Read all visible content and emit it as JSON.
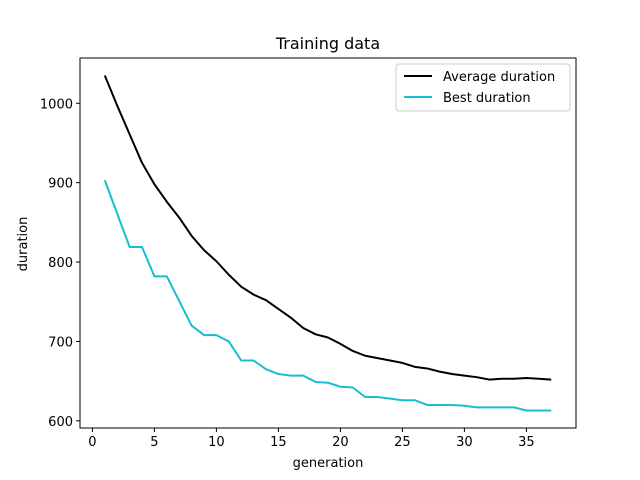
{
  "chart_data": {
    "type": "line",
    "title": "Training data",
    "xlabel": "generation",
    "ylabel": "duration",
    "xlim": [
      -1,
      39
    ],
    "ylim": [
      591,
      1057
    ],
    "xticks": [
      0,
      5,
      10,
      15,
      20,
      25,
      30,
      35
    ],
    "yticks": [
      600,
      700,
      800,
      900,
      1000
    ],
    "grid": false,
    "legend_position": "top-right",
    "x": [
      1,
      2,
      3,
      4,
      5,
      6,
      7,
      8,
      9,
      10,
      11,
      12,
      13,
      14,
      15,
      16,
      17,
      18,
      19,
      20,
      21,
      22,
      23,
      24,
      25,
      26,
      27,
      28,
      29,
      30,
      31,
      32,
      33,
      34,
      35,
      36,
      37
    ],
    "series": [
      {
        "name": "Average duration",
        "color": "#000000",
        "values": [
          1035,
          997,
          961,
          925,
          898,
          876,
          856,
          833,
          815,
          801,
          784,
          769,
          759,
          752,
          741,
          730,
          717,
          709,
          705,
          697,
          688,
          682,
          679,
          676,
          673,
          668,
          666,
          662,
          659,
          657,
          655,
          652,
          653,
          653,
          654,
          653,
          652
        ]
      },
      {
        "name": "Best duration",
        "color": "#17becf",
        "values": [
          903,
          861,
          819,
          819,
          782,
          782,
          751,
          720,
          708,
          708,
          700,
          676,
          676,
          665,
          659,
          657,
          657,
          649,
          648,
          643,
          642,
          630,
          630,
          628,
          626,
          626,
          620,
          620,
          620,
          619,
          617,
          617,
          617,
          617,
          613,
          613,
          613
        ]
      }
    ]
  }
}
